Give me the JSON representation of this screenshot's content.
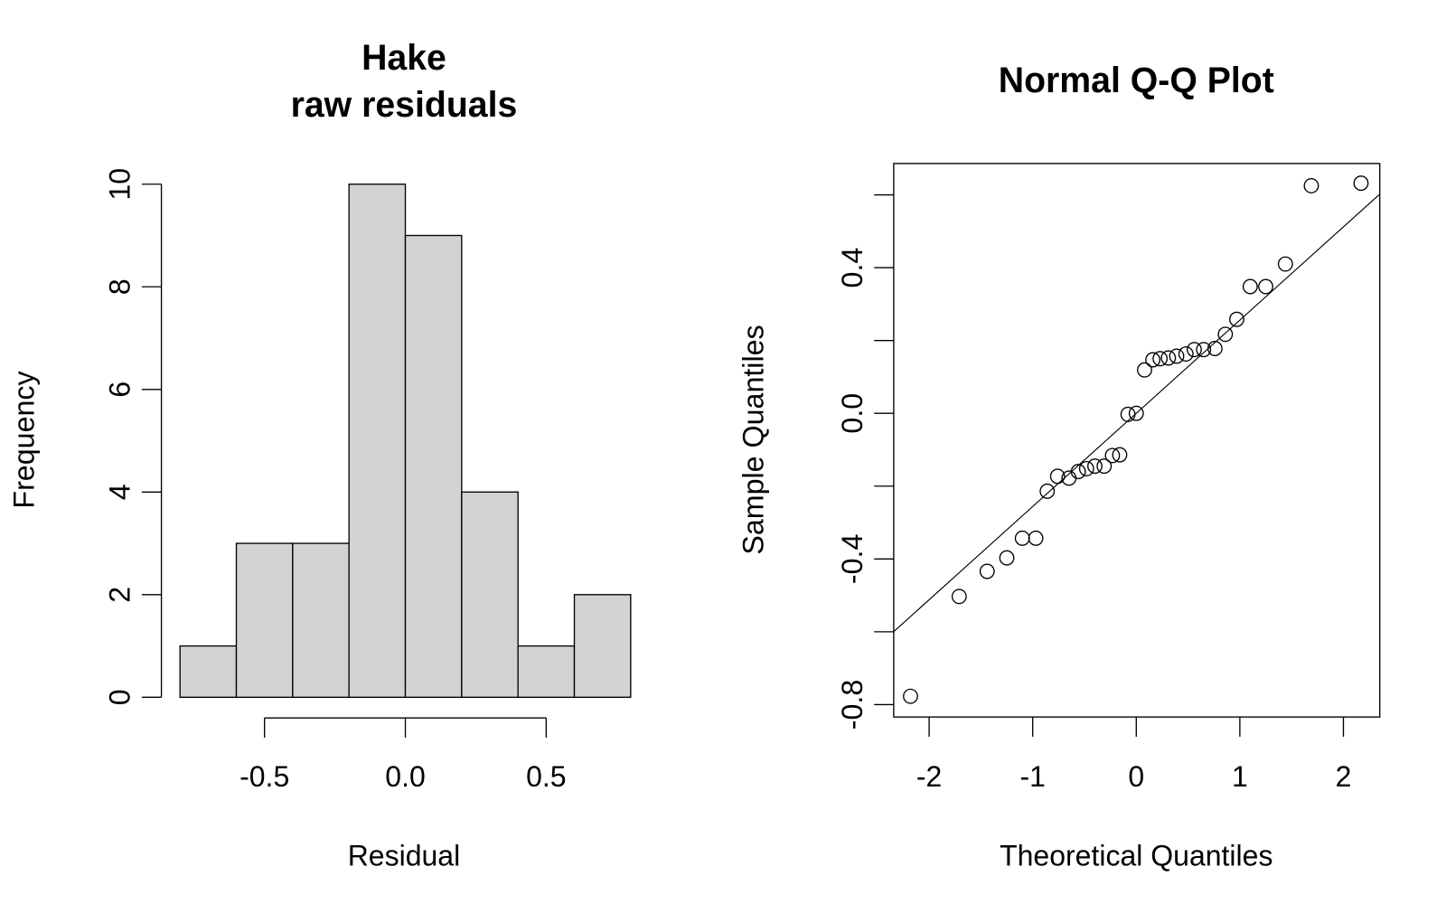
{
  "chart_data": [
    {
      "type": "histogram",
      "title": [
        "Hake",
        "raw residuals"
      ],
      "xlabel": "Residual",
      "ylabel": "Frequency",
      "bins": [
        -0.8,
        -0.6,
        -0.4,
        -0.2,
        0,
        0.2,
        0.4,
        0.6,
        0.8
      ],
      "values": [
        1,
        3,
        3,
        10,
        9,
        4,
        1,
        2
      ],
      "color": "#d3d3d3",
      "xlim": [
        -0.864,
        0.864
      ],
      "xticks": [
        -0.5,
        {
          "value": 0,
          "label": "0.0"
        },
        0.5
      ],
      "ylim": [
        -0.4,
        10.4
      ],
      "yticks": [
        0,
        2,
        4,
        6,
        8,
        10
      ]
    },
    {
      "type": "scatter",
      "title": [
        "Normal Q-Q Plot"
      ],
      "xlabel": "Theoretical Quantiles",
      "ylabel": "Sample Quantiles",
      "x": [
        -2.18,
        -1.71,
        -1.44,
        -1.25,
        -1.1,
        -0.97,
        -0.86,
        -0.76,
        -0.65,
        -0.56,
        -0.48,
        -0.4,
        -0.31,
        -0.23,
        -0.16,
        -0.08,
        0,
        0.08,
        0.16,
        0.23,
        0.31,
        0.39,
        0.48,
        0.56,
        0.65,
        0.76,
        0.86,
        0.97,
        1.1,
        1.25,
        1.44,
        1.69,
        2.17
      ],
      "values": [
        -0.777,
        -0.503,
        -0.434,
        -0.397,
        -0.343,
        -0.343,
        -0.214,
        -0.173,
        -0.178,
        -0.16,
        -0.152,
        -0.145,
        -0.145,
        -0.116,
        -0.114,
        -0.003,
        0,
        0.119,
        0.147,
        0.15,
        0.152,
        0.157,
        0.163,
        0.175,
        0.175,
        0.178,
        0.217,
        0.258,
        0.348,
        0.348,
        0.41,
        0.625,
        0.632
      ],
      "qq_line": {
        "intercept": 0,
        "slope": 0.256
      },
      "xlim": [
        -2.342,
        2.351
      ],
      "xticks": [
        -2,
        -1,
        0,
        1,
        2
      ],
      "ylim": [
        -0.834,
        0.686
      ],
      "yticks": [
        {
          "value": -0.8,
          "label": "-0.8"
        },
        {
          "value": -0.6
        },
        {
          "value": -0.4,
          "label": "-0.4"
        },
        {
          "value": -0.2
        },
        {
          "value": 0,
          "label": "0.0"
        },
        {
          "value": 0.2
        },
        {
          "value": 0.4,
          "label": "0.4"
        },
        {
          "value": 0.6
        }
      ]
    }
  ]
}
